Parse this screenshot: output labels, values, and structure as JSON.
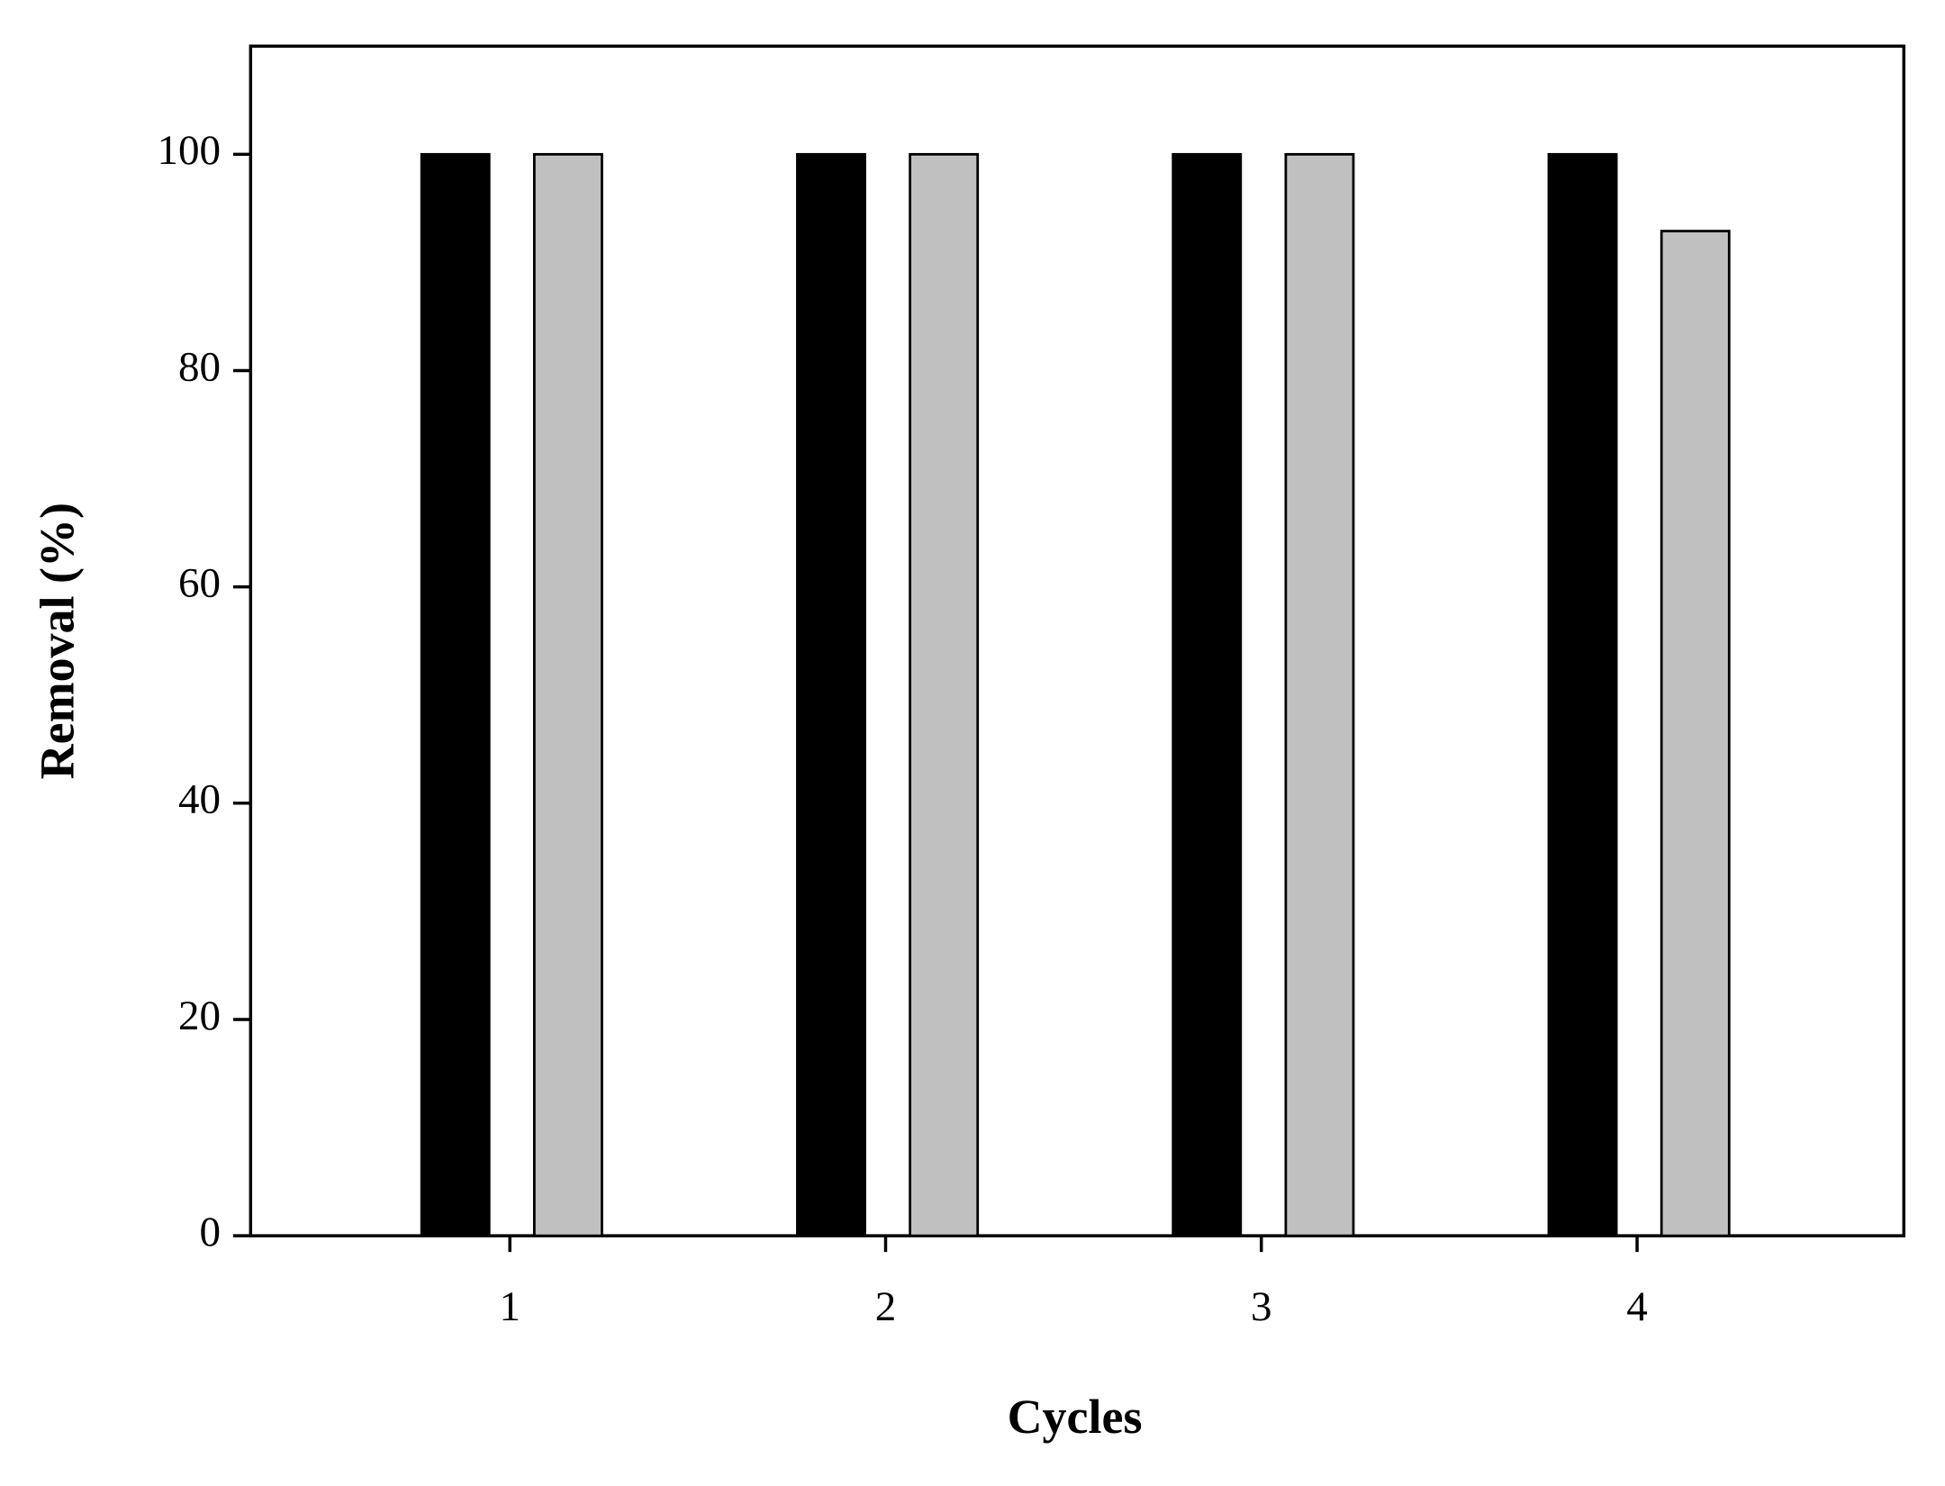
{
  "chart_data": {
    "type": "bar",
    "x_label": "Cycles",
    "y_label": "Removal (%)",
    "categories": [
      "1",
      "2",
      "3",
      "4"
    ],
    "series": [
      {
        "color": "#000000",
        "values": [
          100,
          100,
          100,
          100
        ]
      },
      {
        "color": "#c0c0c0",
        "values": [
          100,
          100,
          100,
          92.9
        ]
      }
    ],
    "ylim": [
      0,
      110
    ],
    "yticks": [
      0,
      20,
      40,
      60,
      80,
      100
    ]
  }
}
